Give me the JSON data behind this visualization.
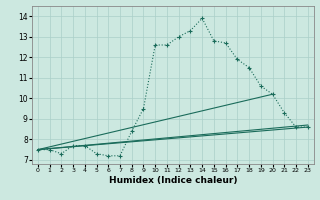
{
  "title": "",
  "xlabel": "Humidex (Indice chaleur)",
  "ylabel": "",
  "x_ticks": [
    0,
    1,
    2,
    3,
    4,
    5,
    6,
    7,
    8,
    9,
    10,
    11,
    12,
    13,
    14,
    15,
    16,
    17,
    18,
    19,
    20,
    21,
    22,
    23
  ],
  "ylim": [
    6.8,
    14.5
  ],
  "xlim": [
    -0.5,
    23.5
  ],
  "yticks": [
    7,
    8,
    9,
    10,
    11,
    12,
    13,
    14
  ],
  "background_color": "#cce8e0",
  "line_color": "#1a6b5a",
  "grid_color": "#aacfc8",
  "series1_x": [
    0,
    1,
    2,
    3,
    4,
    5,
    6,
    7,
    8,
    9,
    10,
    11,
    12,
    13,
    14,
    15,
    16,
    17,
    18,
    19,
    20,
    21,
    22,
    23
  ],
  "series1_y": [
    7.5,
    7.5,
    7.3,
    7.7,
    7.7,
    7.3,
    7.2,
    7.2,
    8.4,
    9.5,
    12.6,
    12.6,
    13.0,
    13.3,
    13.9,
    12.8,
    12.7,
    11.9,
    11.5,
    10.6,
    10.2,
    9.3,
    8.6,
    8.6
  ],
  "line1_x": [
    0,
    23
  ],
  "line1_y": [
    7.5,
    8.6
  ],
  "line2_x": [
    0,
    23
  ],
  "line2_y": [
    7.5,
    8.7
  ],
  "line3_x": [
    0,
    20
  ],
  "line3_y": [
    7.5,
    10.2
  ]
}
